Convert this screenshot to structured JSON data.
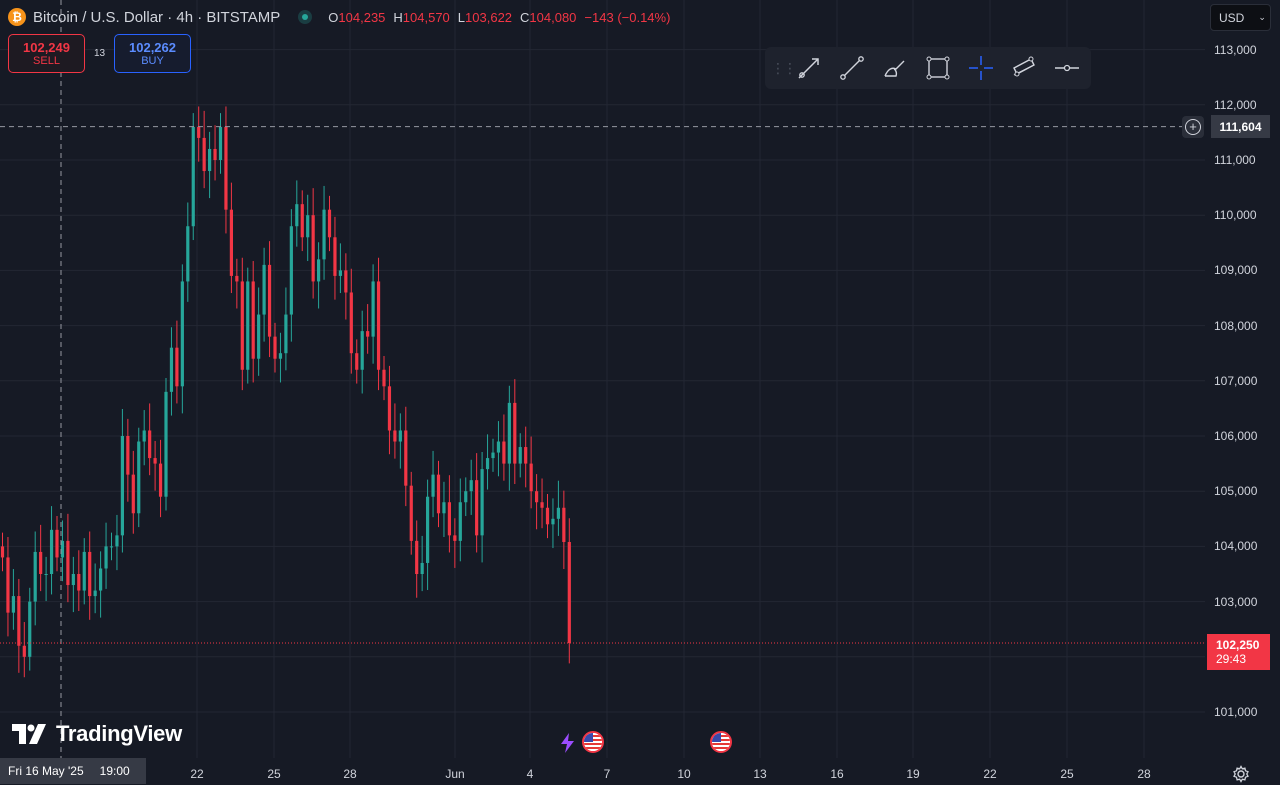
{
  "header": {
    "logo": "bitcoin-logo",
    "symbol": "Bitcoin / U.S. Dollar · 4h · BITSTAMP",
    "ohlc": {
      "o_key": "O",
      "o": "104,235",
      "h_key": "H",
      "h": "104,570",
      "l_key": "L",
      "l": "103,622",
      "c_key": "C",
      "c": "104,080",
      "change": "−143 (−0.14%)"
    }
  },
  "trade": {
    "sell_price": "102,249",
    "sell_label": "SELL",
    "spread": "13",
    "buy_price": "102,262",
    "buy_label": "BUY"
  },
  "toolbar": {
    "tools": [
      "trend-arrow-icon",
      "trend-line-icon",
      "brush-icon",
      "rectangle-icon",
      "crosshair-icon",
      "parallel-channel-icon",
      "horizontal-ray-icon"
    ]
  },
  "currency": {
    "label": "USD"
  },
  "crosshair": {
    "price_label": "111,604",
    "date_label": "Fri 16 May '25",
    "time_label": "19:00"
  },
  "last_price": {
    "price": "102,250",
    "countdown": "29:43"
  },
  "brand": {
    "name": "TradingView"
  },
  "colors": {
    "up": "#26a69a",
    "down": "#f23645",
    "background": "#161a25",
    "grid": "#232733"
  },
  "chart_data": {
    "type": "candlestick",
    "y_ticks": [
      101000,
      102000,
      103000,
      104000,
      105000,
      106000,
      107000,
      108000,
      109000,
      110000,
      111000,
      112000,
      113000
    ],
    "y_tick_labels": [
      "101,000",
      "102,000",
      "103,000",
      "104,000",
      "105,000",
      "106,000",
      "107,000",
      "108,000",
      "109,000",
      "110,000",
      "111,000",
      "112,000",
      "113,000"
    ],
    "x_tick_labels": [
      "22",
      "25",
      "28",
      "Jun",
      "4",
      "7",
      "10",
      "13",
      "16",
      "19",
      "22",
      "25",
      "28"
    ],
    "crosshair_price": 111604,
    "last_price": 102250,
    "candles_close": [
      103800,
      102800,
      103100,
      102200,
      102000,
      103000,
      103900,
      103500,
      103500,
      104300,
      103800,
      104100,
      103300,
      103500,
      103200,
      103900,
      103100,
      103200,
      103600,
      104000,
      104000,
      104200,
      106000,
      105300,
      104600,
      105900,
      106100,
      105600,
      105500,
      104900,
      106800,
      107600,
      106900,
      108800,
      109800,
      111600,
      111400,
      110800,
      111200,
      111000,
      111600,
      110100,
      108900,
      108800,
      107200,
      108800,
      107400,
      108200,
      109100,
      107800,
      107400,
      107500,
      108200,
      109800,
      110200,
      109600,
      110000,
      108800,
      109200,
      110100,
      109600,
      108900,
      109000,
      108600,
      107500,
      107200,
      107900,
      107800,
      108800,
      107200,
      106900,
      106100,
      105900,
      106100,
      105100,
      104100,
      103500,
      103700,
      104900,
      105300,
      104600,
      104800,
      104200,
      104100,
      104800,
      105000,
      105200,
      104200,
      105400,
      105600,
      105700,
      105900,
      105500,
      106600,
      105500,
      105800,
      105500,
      105000,
      104800,
      104700,
      104400,
      104500,
      104700,
      104080,
      102250
    ]
  }
}
